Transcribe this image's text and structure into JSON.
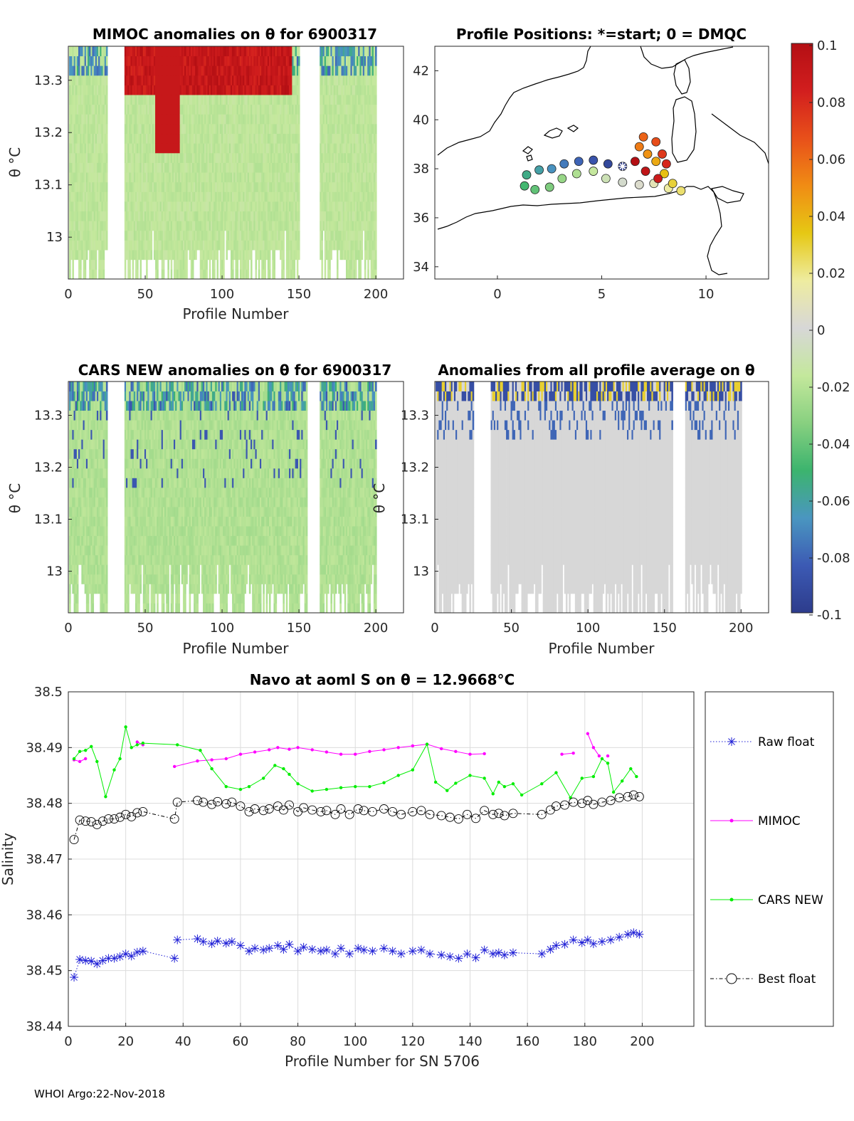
{
  "footer": "WHOI Argo:22-Nov-2018",
  "colorbar": {
    "ticks": [
      "0.1",
      "0.08",
      "0.06",
      "0.04",
      "0.02",
      "0",
      "-0.02",
      "-0.04",
      "-0.06",
      "-0.08",
      "-0.1"
    ],
    "stops": [
      "#b40f14",
      "#d21e1e",
      "#e8501a",
      "#f08c14",
      "#e6c814",
      "#eeeca0",
      "#d7d7d7",
      "#c4e89c",
      "#88d080",
      "#3cb46e",
      "#4a96c0",
      "#3c5ab4",
      "#2d3c8c"
    ]
  },
  "chart_data": [
    {
      "id": "mimoc",
      "type": "heatmap",
      "title": "MIMOC anomalies on θ  for 6900317",
      "xlabel": "Profile Number",
      "ylabel": "θ °C",
      "xlim": [
        0,
        218
      ],
      "ylim": [
        12.92,
        13.365
      ],
      "xticks": [
        0,
        50,
        100,
        150,
        200
      ],
      "xtick_labels": [
        "0",
        "50",
        "100",
        "150",
        "200"
      ],
      "yticks": [
        13.0,
        13.1,
        13.2,
        13.3
      ],
      "ytick_labels": [
        "13",
        "13.1",
        "13.2",
        "13.3"
      ],
      "gaps": [
        [
          26,
          36
        ],
        [
          151,
          163
        ]
      ],
      "base_value": -0.018,
      "anomaly_high": {
        "x_range": [
          37,
          145
        ],
        "theta_floor": 13.26,
        "value": 0.09
      },
      "anomaly_deep": {
        "x_range": [
          57,
          72
        ],
        "theta_floor": 13.16,
        "value": 0.09
      }
    },
    {
      "id": "map",
      "type": "scatter",
      "title": "Profile Positions: *=start; 0 = DMQC",
      "xlabel": "",
      "ylabel": "",
      "xlim": [
        -3,
        13
      ],
      "ylim": [
        33.5,
        43
      ],
      "xticks": [
        0,
        5,
        10
      ],
      "xtick_labels": [
        "0",
        "5",
        "10"
      ],
      "yticks": [
        34,
        36,
        38,
        40,
        42
      ],
      "ytick_labels": [
        "34",
        "36",
        "38",
        "40",
        "42"
      ],
      "start": {
        "lon": 6.0,
        "lat": 38.1
      },
      "track": [
        {
          "lon": 6.0,
          "lat": 38.1
        },
        {
          "lon": 5.3,
          "lat": 38.2
        },
        {
          "lon": 4.6,
          "lat": 38.35
        },
        {
          "lon": 3.9,
          "lat": 38.3
        },
        {
          "lon": 3.2,
          "lat": 38.2
        },
        {
          "lon": 2.6,
          "lat": 38.0
        },
        {
          "lon": 2.0,
          "lat": 37.95
        },
        {
          "lon": 1.4,
          "lat": 37.75
        },
        {
          "lon": 1.3,
          "lat": 37.3
        },
        {
          "lon": 1.8,
          "lat": 37.15
        },
        {
          "lon": 2.5,
          "lat": 37.25
        },
        {
          "lon": 3.1,
          "lat": 37.6
        },
        {
          "lon": 3.8,
          "lat": 37.8
        },
        {
          "lon": 4.6,
          "lat": 37.9
        },
        {
          "lon": 5.2,
          "lat": 37.6
        },
        {
          "lon": 6.0,
          "lat": 37.45
        },
        {
          "lon": 6.8,
          "lat": 37.35
        },
        {
          "lon": 7.5,
          "lat": 37.4
        },
        {
          "lon": 8.2,
          "lat": 37.2
        },
        {
          "lon": 8.8,
          "lat": 37.1
        },
        {
          "lon": 8.4,
          "lat": 37.4
        },
        {
          "lon": 8.0,
          "lat": 37.8
        },
        {
          "lon": 7.6,
          "lat": 38.3
        },
        {
          "lon": 7.2,
          "lat": 38.6
        },
        {
          "lon": 6.8,
          "lat": 38.9
        },
        {
          "lon": 7.0,
          "lat": 39.3
        },
        {
          "lon": 7.6,
          "lat": 39.1
        },
        {
          "lon": 7.9,
          "lat": 38.6
        },
        {
          "lon": 8.1,
          "lat": 38.2
        },
        {
          "lon": 7.7,
          "lat": 37.6
        },
        {
          "lon": 7.1,
          "lat": 37.9
        },
        {
          "lon": 6.6,
          "lat": 38.3
        }
      ]
    },
    {
      "id": "cars",
      "type": "heatmap",
      "title": "CARS NEW anomalies on θ for 6900317",
      "xlabel": "Profile Number",
      "ylabel": "θ °C",
      "xlim": [
        0,
        218
      ],
      "ylim": [
        12.92,
        13.365
      ],
      "xticks": [
        0,
        50,
        100,
        150,
        200
      ],
      "xtick_labels": [
        "0",
        "50",
        "100",
        "150",
        "200"
      ],
      "yticks": [
        13.0,
        13.1,
        13.2,
        13.3
      ],
      "ytick_labels": [
        "13",
        "13.1",
        "13.2",
        "13.3"
      ],
      "gaps": [
        [
          26,
          36
        ],
        [
          156,
          163
        ]
      ],
      "base_value": -0.022
    },
    {
      "id": "avg",
      "type": "heatmap",
      "title": "Anomalies from all profile average on θ",
      "xlabel": "Profile Number",
      "ylabel": "θ °C",
      "xlim": [
        0,
        218
      ],
      "ylim": [
        12.92,
        13.365
      ],
      "xticks": [
        0,
        50,
        100,
        150,
        200
      ],
      "xtick_labels": [
        "0",
        "50",
        "100",
        "150",
        "200"
      ],
      "yticks": [
        13.0,
        13.1,
        13.2,
        13.3
      ],
      "ytick_labels": [
        "13",
        "13.1",
        "13.2",
        "13.3"
      ],
      "gaps": [
        [
          26,
          36
        ],
        [
          156,
          163
        ]
      ],
      "base_value": 0.0
    },
    {
      "id": "salinity",
      "type": "line",
      "title": "Navo at aoml S on θ = 12.9668°C",
      "xlabel": "Profile Number for SN 5706",
      "ylabel": "Salinity",
      "xlim": [
        0,
        218
      ],
      "ylim": [
        38.44,
        38.5
      ],
      "xticks": [
        0,
        20,
        40,
        60,
        80,
        100,
        120,
        140,
        160,
        180,
        200
      ],
      "xtick_labels": [
        "0",
        "20",
        "40",
        "60",
        "80",
        "100",
        "120",
        "140",
        "160",
        "180",
        "200"
      ],
      "yticks": [
        38.44,
        38.45,
        38.46,
        38.47,
        38.48,
        38.49,
        38.5
      ],
      "ytick_labels": [
        "38.44",
        "38.45",
        "38.46",
        "38.47",
        "38.48",
        "38.49",
        "38.5"
      ],
      "series": [
        {
          "name": "Raw float",
          "color": "#1f1fd6",
          "marker": "asterisk",
          "x": [
            2,
            4,
            6,
            8,
            10,
            12,
            14,
            16,
            18,
            20,
            22,
            24,
            26,
            37,
            38,
            45,
            47,
            50,
            52,
            55,
            57,
            60,
            63,
            65,
            68,
            70,
            73,
            75,
            77,
            80,
            82,
            85,
            88,
            90,
            93,
            95,
            98,
            101,
            103,
            106,
            110,
            113,
            116,
            120,
            123,
            126,
            130,
            133,
            136,
            139,
            142,
            145,
            148,
            150,
            152,
            155,
            165,
            168,
            170,
            173,
            176,
            179,
            181,
            183,
            186,
            189,
            192,
            195,
            197,
            199
          ],
          "y": [
            38.4488,
            38.452,
            38.4518,
            38.4517,
            38.4512,
            38.4518,
            38.4522,
            38.4522,
            38.4525,
            38.453,
            38.4526,
            38.4533,
            38.4535,
            38.4522,
            38.4555,
            38.4557,
            38.4552,
            38.4548,
            38.4553,
            38.4549,
            38.4552,
            38.4545,
            38.4535,
            38.454,
            38.4537,
            38.454,
            38.4545,
            38.4538,
            38.4547,
            38.4535,
            38.4542,
            38.4538,
            38.4535,
            38.4537,
            38.453,
            38.454,
            38.453,
            38.454,
            38.4537,
            38.4535,
            38.454,
            38.4535,
            38.453,
            38.4535,
            38.4537,
            38.453,
            38.4528,
            38.4525,
            38.4522,
            38.453,
            38.4523,
            38.4537,
            38.453,
            38.4532,
            38.4528,
            38.4532,
            38.453,
            38.4538,
            38.4545,
            38.4547,
            38.4555,
            38.455,
            38.4555,
            38.4548,
            38.4552,
            38.4555,
            38.456,
            38.4565,
            38.4568,
            38.4565
          ],
          "breaks": [
            13,
            53
          ]
        },
        {
          "name": "MIMOC",
          "color": "#ff00ff",
          "marker": "dot",
          "x": [
            2,
            4,
            6,
            24,
            26,
            37,
            45,
            50,
            55,
            60,
            65,
            70,
            73,
            77,
            80,
            85,
            90,
            95,
            100,
            105,
            110,
            115,
            120,
            125,
            130,
            135,
            140,
            145,
            172,
            176,
            181,
            183,
            185,
            188
          ],
          "y": [
            38.4878,
            38.4875,
            38.488,
            38.491,
            38.4905,
            38.4866,
            38.4876,
            38.4878,
            38.488,
            38.4888,
            38.4892,
            38.4896,
            38.49,
            38.4897,
            38.49,
            38.4896,
            38.4892,
            38.4888,
            38.4888,
            38.4893,
            38.4896,
            38.49,
            38.4903,
            38.4906,
            38.4898,
            38.4893,
            38.4888,
            38.4889,
            38.4888,
            38.489,
            38.4925,
            38.49,
            38.4885,
            38.4885
          ],
          "breaks": [
            2,
            4,
            27,
            29,
            32
          ]
        },
        {
          "name": "CARS NEW",
          "color": "#00ee00",
          "marker": "dot",
          "x": [
            2,
            4,
            6,
            8,
            10,
            13,
            16,
            18,
            20,
            22,
            24,
            26,
            38,
            46,
            50,
            55,
            60,
            63,
            68,
            72,
            75,
            77,
            80,
            85,
            90,
            95,
            100,
            105,
            110,
            115,
            120,
            125,
            128,
            132,
            135,
            140,
            145,
            148,
            150,
            152,
            155,
            158,
            165,
            170,
            175,
            179,
            183,
            186,
            188,
            190,
            193,
            196,
            198
          ],
          "y": [
            38.488,
            38.4893,
            38.4895,
            38.4902,
            38.4875,
            38.4812,
            38.486,
            38.488,
            38.4937,
            38.49,
            38.4905,
            38.4908,
            38.4905,
            38.4895,
            38.4862,
            38.483,
            38.4825,
            38.483,
            38.4845,
            38.4868,
            38.4862,
            38.4852,
            38.4835,
            38.4822,
            38.4825,
            38.4828,
            38.483,
            38.483,
            38.4837,
            38.485,
            38.486,
            38.4906,
            38.4838,
            38.4823,
            38.4836,
            38.485,
            38.4845,
            38.4817,
            38.4838,
            38.483,
            38.4835,
            38.4815,
            38.4835,
            38.4855,
            38.481,
            38.4845,
            38.4848,
            38.488,
            38.4872,
            38.482,
            38.484,
            38.4862,
            38.4848
          ],
          "breaks": []
        },
        {
          "name": "Best float",
          "color": "#000000",
          "marker": "circle",
          "x": [
            2,
            4,
            6,
            8,
            10,
            12,
            14,
            16,
            18,
            20,
            22,
            24,
            26,
            37,
            38,
            45,
            47,
            50,
            52,
            55,
            57,
            60,
            63,
            65,
            68,
            70,
            73,
            75,
            77,
            80,
            82,
            85,
            88,
            90,
            93,
            95,
            98,
            101,
            103,
            106,
            110,
            113,
            116,
            120,
            123,
            126,
            130,
            133,
            136,
            139,
            142,
            145,
            148,
            150,
            152,
            155,
            165,
            168,
            170,
            173,
            176,
            179,
            181,
            183,
            186,
            189,
            192,
            195,
            197,
            199
          ],
          "y": [
            38.4735,
            38.477,
            38.4768,
            38.4767,
            38.4762,
            38.4768,
            38.4772,
            38.4772,
            38.4775,
            38.478,
            38.4776,
            38.4783,
            38.4785,
            38.4772,
            38.4802,
            38.4805,
            38.4802,
            38.4798,
            38.4803,
            38.4799,
            38.4802,
            38.4795,
            38.4785,
            38.479,
            38.4787,
            38.479,
            38.4795,
            38.4788,
            38.4797,
            38.4785,
            38.4792,
            38.4788,
            38.4785,
            38.4787,
            38.478,
            38.479,
            38.478,
            38.479,
            38.4787,
            38.4785,
            38.479,
            38.4785,
            38.478,
            38.4785,
            38.4787,
            38.478,
            38.4778,
            38.4775,
            38.4772,
            38.478,
            38.4773,
            38.4787,
            38.478,
            38.4782,
            38.4778,
            38.4782,
            38.478,
            38.4788,
            38.4795,
            38.4797,
            38.4802,
            38.48,
            38.4805,
            38.4798,
            38.4802,
            38.4805,
            38.481,
            38.4812,
            38.4815,
            38.4812
          ],
          "breaks": []
        }
      ]
    }
  ]
}
